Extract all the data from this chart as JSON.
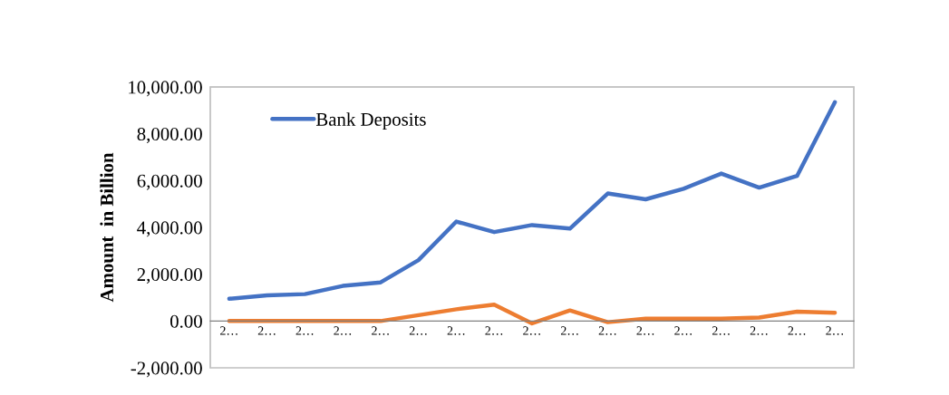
{
  "chart_data": {
    "type": "line",
    "ylabel": "Amount  in Billion",
    "categories": [
      "2…",
      "2…",
      "2…",
      "2…",
      "2…",
      "2…",
      "2…",
      "2…",
      "2…",
      "2…",
      "2…",
      "2…",
      "2…",
      "2…",
      "2…",
      "2…",
      "2…"
    ],
    "series": [
      {
        "name": "Bank Deposits",
        "color": "#4472c4",
        "values": [
          950,
          1100,
          1150,
          1500,
          1650,
          2600,
          4250,
          3800,
          4100,
          3950,
          5450,
          5200,
          5650,
          6300,
          5700,
          6200,
          9350
        ]
      },
      {
        "color": "#ed7d31",
        "values": [
          0,
          0,
          0,
          0,
          0,
          250,
          500,
          700,
          -100,
          450,
          -50,
          100,
          100,
          100,
          150,
          400,
          350
        ]
      }
    ],
    "ylim": [
      -2000,
      10000
    ],
    "yticks": [
      {
        "value": -2000,
        "label": "-2,000.00"
      },
      {
        "value": 0,
        "label": "0.00"
      },
      {
        "value": 2000,
        "label": "2,000.00"
      },
      {
        "value": 4000,
        "label": "4,000.00"
      },
      {
        "value": 6000,
        "label": "6,000.00"
      },
      {
        "value": 8000,
        "label": "8,000.00"
      },
      {
        "value": 10000,
        "label": "10,000.00"
      }
    ],
    "legend": "top left",
    "grid": false,
    "marker": "none",
    "line_style": "solid"
  }
}
